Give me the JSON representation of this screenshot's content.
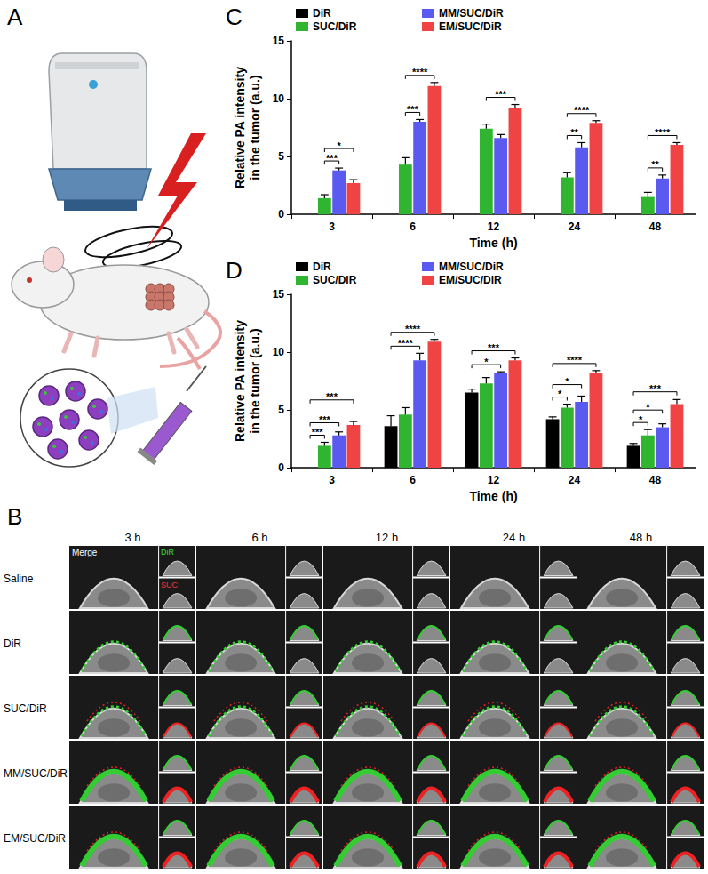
{
  "figure": {
    "panel_a": {
      "panel_label": "A"
    },
    "panel_b": {
      "panel_label": "B",
      "columns": [
        "3 h",
        "6 h",
        "12 h",
        "24 h",
        "48 h"
      ],
      "rows": [
        "Saline",
        "DiR",
        "SUC/DiR",
        "MM/SUC/DiR",
        "EM/SUC/DiR"
      ],
      "channel_labels": [
        "Merge",
        "DiR",
        "SUC"
      ]
    }
  },
  "chart_data": [
    {
      "type": "bar",
      "panel_label": "C",
      "categories": [
        "3",
        "6",
        "12",
        "24",
        "48"
      ],
      "x_label": "Time (h)",
      "y_label": "Relative PA intensity\nin the tumor (a.u.)",
      "ylim": [
        0,
        15
      ],
      "yticks": [
        0,
        5,
        10,
        15
      ],
      "legend": "top",
      "series": [
        {
          "name": "DiR",
          "color": "#000000",
          "values": [
            null,
            null,
            null,
            null,
            null
          ],
          "errors": [
            null,
            null,
            null,
            null,
            null
          ]
        },
        {
          "name": "SUC/DiR",
          "color": "#2fb52f",
          "values": [
            1.4,
            4.3,
            7.4,
            3.2,
            1.5
          ],
          "errors": [
            0.3,
            0.6,
            0.4,
            0.4,
            0.4
          ]
        },
        {
          "name": "MM/SUC/DiR",
          "color": "#5a5af0",
          "values": [
            3.8,
            8.0,
            6.6,
            5.8,
            3.1
          ],
          "errors": [
            0.2,
            0.2,
            0.3,
            0.4,
            0.3
          ]
        },
        {
          "name": "EM/SUC/DiR",
          "color": "#f04444",
          "values": [
            2.7,
            11.1,
            9.2,
            7.9,
            6.0
          ],
          "errors": [
            0.3,
            0.3,
            0.3,
            0.2,
            0.2
          ]
        }
      ],
      "significance": [
        {
          "category": "3",
          "from": "SUC/DiR",
          "to": "MM/SUC/DiR",
          "label": "***"
        },
        {
          "category": "3",
          "from": "SUC/DiR",
          "to": "EM/SUC/DiR",
          "label": "*"
        },
        {
          "category": "6",
          "from": "SUC/DiR",
          "to": "MM/SUC/DiR",
          "label": "***"
        },
        {
          "category": "6",
          "from": "SUC/DiR",
          "to": "EM/SUC/DiR",
          "label": "****"
        },
        {
          "category": "12",
          "from": "SUC/DiR",
          "to": "EM/SUC/DiR",
          "label": "***"
        },
        {
          "category": "24",
          "from": "SUC/DiR",
          "to": "MM/SUC/DiR",
          "label": "**"
        },
        {
          "category": "24",
          "from": "SUC/DiR",
          "to": "EM/SUC/DiR",
          "label": "****"
        },
        {
          "category": "48",
          "from": "SUC/DiR",
          "to": "MM/SUC/DiR",
          "label": "**"
        },
        {
          "category": "48",
          "from": "SUC/DiR",
          "to": "EM/SUC/DiR",
          "label": "****"
        }
      ]
    },
    {
      "type": "bar",
      "panel_label": "D",
      "categories": [
        "3",
        "6",
        "12",
        "24",
        "48"
      ],
      "x_label": "Time (h)",
      "y_label": "Relative PA intensity\nin the tumor (a.u.)",
      "ylim": [
        0,
        15
      ],
      "yticks": [
        0,
        5,
        10,
        15
      ],
      "legend": "top",
      "series": [
        {
          "name": "DiR",
          "color": "#000000",
          "values": [
            null,
            3.6,
            6.5,
            4.2,
            1.9
          ],
          "errors": [
            null,
            0.9,
            0.3,
            0.2,
            0.2
          ]
        },
        {
          "name": "SUC/DiR",
          "color": "#2fb52f",
          "values": [
            1.9,
            4.6,
            7.3,
            5.2,
            2.8
          ],
          "errors": [
            0.3,
            0.6,
            0.5,
            0.3,
            0.5
          ]
        },
        {
          "name": "MM/SUC/DiR",
          "color": "#5a5af0",
          "values": [
            2.8,
            9.3,
            8.2,
            5.7,
            3.5
          ],
          "errors": [
            0.3,
            0.6,
            0.1,
            0.5,
            0.3
          ]
        },
        {
          "name": "EM/SUC/DiR",
          "color": "#f04444",
          "values": [
            3.7,
            10.9,
            9.3,
            8.2,
            5.5
          ],
          "errors": [
            0.3,
            0.2,
            0.2,
            0.2,
            0.4
          ]
        }
      ],
      "significance": [
        {
          "category": "3",
          "from": "DiR",
          "to": "SUC/DiR",
          "label": "***"
        },
        {
          "category": "3",
          "from": "DiR",
          "to": "MM/SUC/DiR",
          "label": "***"
        },
        {
          "category": "3",
          "from": "DiR",
          "to": "EM/SUC/DiR",
          "label": "***"
        },
        {
          "category": "6",
          "from": "DiR",
          "to": "MM/SUC/DiR",
          "label": "****"
        },
        {
          "category": "6",
          "from": "DiR",
          "to": "EM/SUC/DiR",
          "label": "****"
        },
        {
          "category": "12",
          "from": "DiR",
          "to": "MM/SUC/DiR",
          "label": "*"
        },
        {
          "category": "12",
          "from": "DiR",
          "to": "EM/SUC/DiR",
          "label": "***"
        },
        {
          "category": "24",
          "from": "DiR",
          "to": "SUC/DiR",
          "label": "*"
        },
        {
          "category": "24",
          "from": "DiR",
          "to": "MM/SUC/DiR",
          "label": "*"
        },
        {
          "category": "24",
          "from": "DiR",
          "to": "EM/SUC/DiR",
          "label": "****"
        },
        {
          "category": "48",
          "from": "DiR",
          "to": "SUC/DiR",
          "label": "*"
        },
        {
          "category": "48",
          "from": "DiR",
          "to": "MM/SUC/DiR",
          "label": "*"
        },
        {
          "category": "48",
          "from": "DiR",
          "to": "EM/SUC/DiR",
          "label": "***"
        }
      ]
    }
  ]
}
